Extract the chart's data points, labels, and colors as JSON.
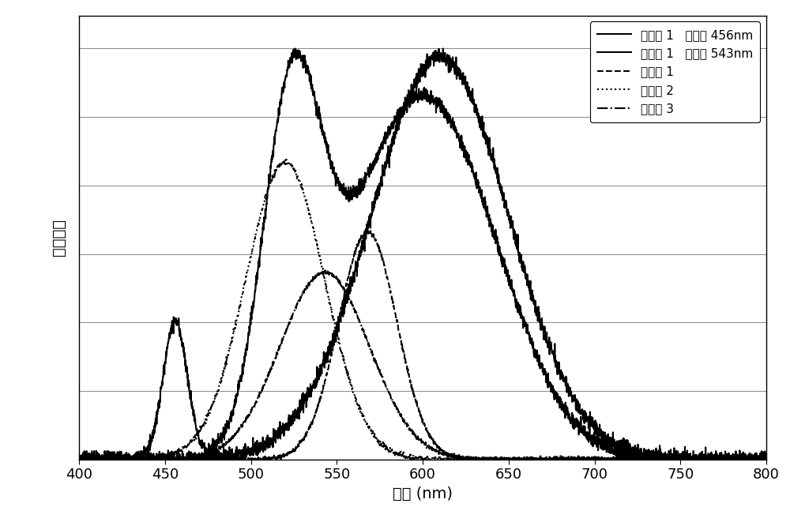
{
  "title": "",
  "xlabel": "波长 (nm)",
  "ylabel": "发光强度",
  "xlim": [
    400,
    800
  ],
  "ylim": [
    0,
    1.08
  ],
  "xticks": [
    400,
    450,
    500,
    550,
    600,
    650,
    700,
    750,
    800
  ],
  "yticks_relative": [
    0.0,
    0.167,
    0.333,
    0.5,
    0.667,
    0.833,
    1.0
  ],
  "background_color": "#ffffff",
  "grid_color": "#888888",
  "legend_entries": [
    "实施例 1   激发光 456nm",
    "实施例 1   激发光 543nm",
    "比较例 1",
    "比较例 2",
    "比较例 3"
  ],
  "line_colors": [
    "#000000",
    "#000000",
    "#000000",
    "#000000",
    "#000000"
  ],
  "line_styles": [
    "-",
    "-",
    "--",
    ":",
    "-."
  ],
  "line_widths": [
    1.5,
    1.5,
    1.5,
    1.5,
    1.5
  ],
  "noise_seeds": [
    10,
    20,
    30,
    40,
    50
  ],
  "noise_levels": [
    0.01,
    0.01,
    0.005,
    0.005,
    0.005
  ]
}
